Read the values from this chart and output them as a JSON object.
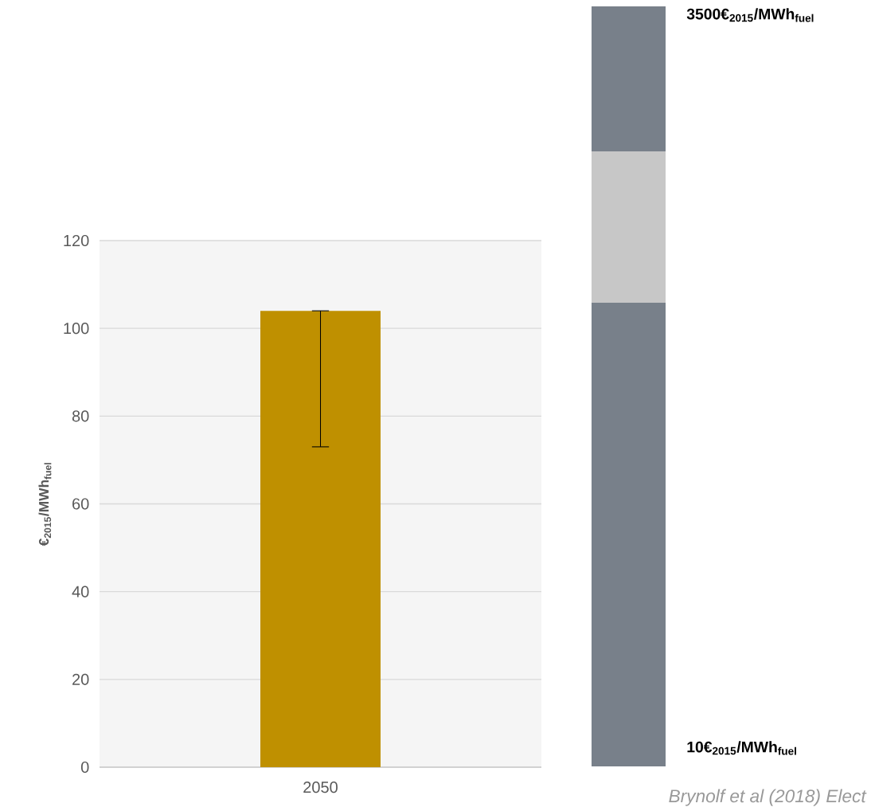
{
  "chart_data": {
    "type": "bar",
    "ylabel": "€$_{2015}$/MWh$_{fuel}$",
    "categories": [
      "2050"
    ],
    "values": [
      104
    ],
    "errors": [
      [
        73,
        104
      ]
    ],
    "color": "#bf9000",
    "ylim": [
      0,
      120
    ],
    "yticks": [
      0,
      20,
      40,
      60,
      80,
      100,
      120
    ],
    "grid": "y",
    "annotations": [
      "3500€$_{2015}$/MWh$_{fuel}$",
      "10€$_{2015}$/MWh$_{fuel}$",
      "Brynolf et al (2018) Elect"
    ]
  }
}
